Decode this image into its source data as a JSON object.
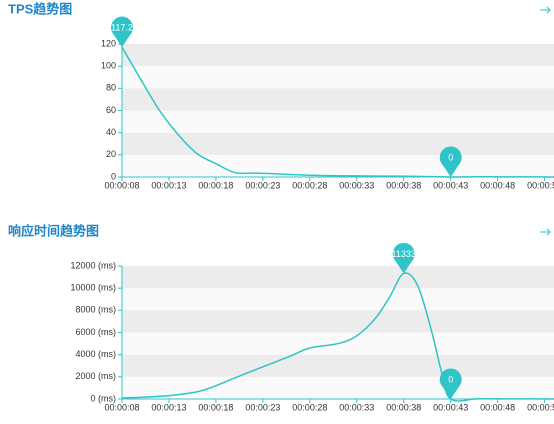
{
  "chart_data": [
    {
      "type": "line",
      "title": "TPS趋势图",
      "color": "#2ec4c8",
      "x": [
        8,
        10,
        12,
        14,
        16,
        18,
        20,
        22,
        24,
        26,
        28,
        30,
        33,
        36,
        38,
        40,
        43,
        46,
        50,
        54
      ],
      "values": [
        117.2,
        88,
        60,
        38,
        21,
        12,
        4,
        3.5,
        3,
        2.2,
        1.6,
        1.2,
        1,
        0.8,
        0.7,
        0.5,
        0,
        0.2,
        0.1,
        0
      ],
      "xlim": [
        8,
        54
      ],
      "xticks": [
        {
          "value": 8,
          "label": "00:00:08"
        },
        {
          "value": 13,
          "label": "00:00:13"
        },
        {
          "value": 18,
          "label": "00:00:18"
        },
        {
          "value": 23,
          "label": "00:00:23"
        },
        {
          "value": 28,
          "label": "00:00:28"
        },
        {
          "value": 33,
          "label": "00:00:33"
        },
        {
          "value": 38,
          "label": "00:00:38"
        },
        {
          "value": 43,
          "label": "00:00:43"
        },
        {
          "value": 48,
          "label": "00:00:48"
        },
        {
          "value": 53,
          "label": "00:00:53"
        }
      ],
      "ylim": [
        0,
        120
      ],
      "yticks": [
        0,
        20,
        40,
        60,
        80,
        100,
        120
      ],
      "markers": [
        {
          "x": 8,
          "value": 117.2
        },
        {
          "x": 43,
          "value": 0
        }
      ],
      "grid": true
    },
    {
      "type": "line",
      "title": "响应时间趋势图",
      "color": "#2ec4c8",
      "x": [
        8,
        10,
        13,
        16,
        18,
        20,
        23,
        26,
        28,
        31,
        33,
        35,
        36.5,
        38,
        39.5,
        41,
        42,
        43,
        46,
        50,
        54
      ],
      "values": [
        100,
        150,
        300,
        650,
        1200,
        1900,
        2900,
        3900,
        4600,
        5000,
        5700,
        7300,
        9200,
        11333,
        10200,
        6000,
        2500,
        0,
        20,
        10,
        0
      ],
      "xlim": [
        8,
        54
      ],
      "xticks": [
        {
          "value": 8,
          "label": "00:00:08"
        },
        {
          "value": 13,
          "label": "00:00:13"
        },
        {
          "value": 18,
          "label": "00:00:18"
        },
        {
          "value": 23,
          "label": "00:00:23"
        },
        {
          "value": 28,
          "label": "00:00:28"
        },
        {
          "value": 33,
          "label": "00:00:33"
        },
        {
          "value": 38,
          "label": "00:00:38"
        },
        {
          "value": 43,
          "label": "00:00:43"
        },
        {
          "value": 48,
          "label": "00:00:48"
        },
        {
          "value": 53,
          "label": "00:00:53"
        }
      ],
      "ylim": [
        0,
        12000
      ],
      "yticks": [
        {
          "value": 0,
          "label": "0 (ms)"
        },
        {
          "value": 2000,
          "label": "2000 (ms)"
        },
        {
          "value": 4000,
          "label": "4000 (ms)"
        },
        {
          "value": 6000,
          "label": "6000 (ms)"
        },
        {
          "value": 8000,
          "label": "8000 (ms)"
        },
        {
          "value": 10000,
          "label": "10000 (ms)"
        },
        {
          "value": 12000,
          "label": "12000 (ms)"
        }
      ],
      "markers": [
        {
          "x": 38,
          "value": 11333
        },
        {
          "x": 43,
          "value": 0
        }
      ],
      "grid": true
    }
  ]
}
